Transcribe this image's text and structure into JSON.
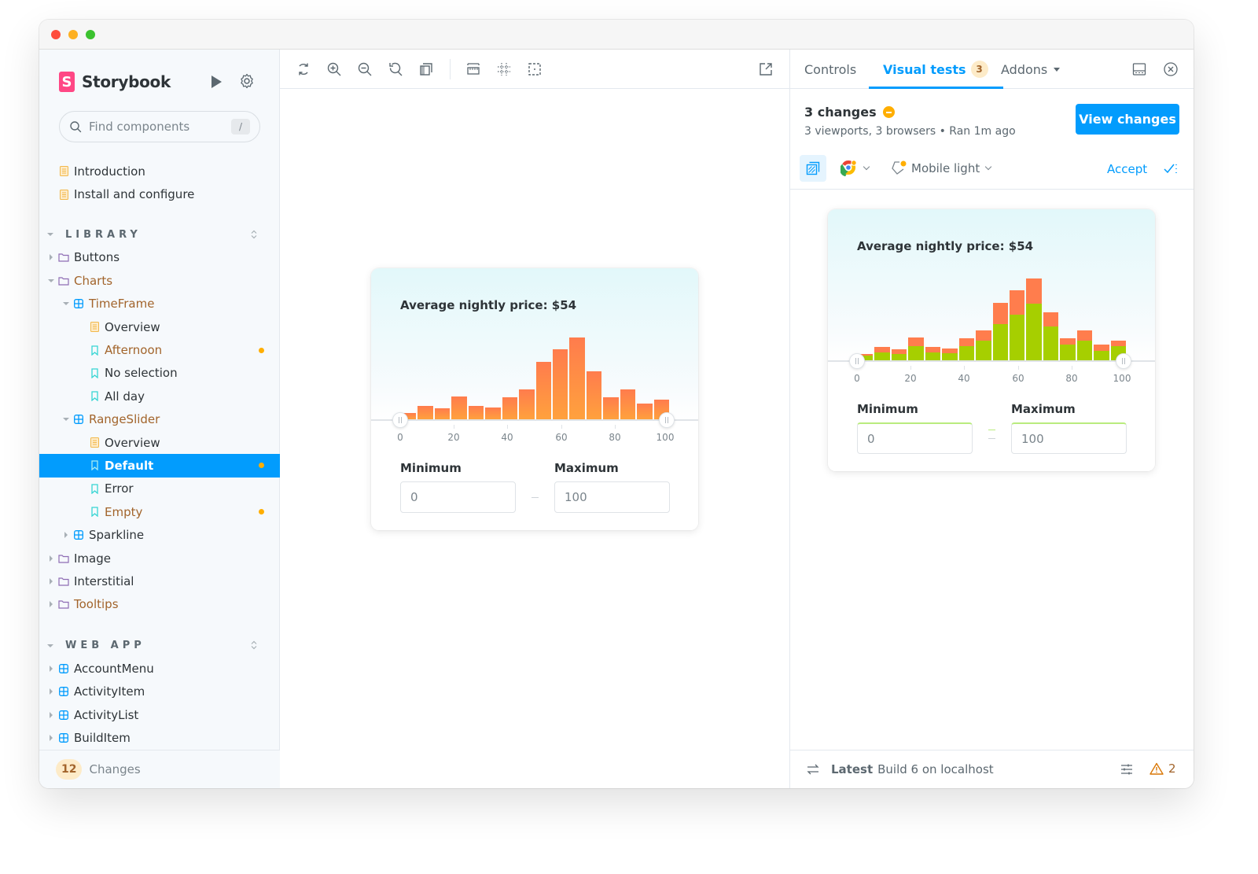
{
  "window": {
    "traffic_lights": [
      "close",
      "minimize",
      "maximize"
    ]
  },
  "sidebar": {
    "brand": "Storybook",
    "brand_glyph": "S",
    "search": {
      "placeholder": "Find components",
      "shortcut": "/"
    },
    "top_items": [
      {
        "label": "Introduction",
        "icon": "doc-icon"
      },
      {
        "label": "Install and configure",
        "icon": "doc-icon"
      }
    ],
    "sections": [
      {
        "label": "LIBRARY",
        "items": [
          {
            "label": "Buttons",
            "type": "folder",
            "expanded": false,
            "level": 0,
            "modified": false
          },
          {
            "label": "Charts",
            "type": "folder",
            "expanded": true,
            "level": 0,
            "modified": true
          },
          {
            "label": "TimeFrame",
            "type": "component",
            "expanded": true,
            "level": 1,
            "modified": true
          },
          {
            "label": "Overview",
            "type": "doc",
            "level": 2,
            "modified": false
          },
          {
            "label": "Afternoon",
            "type": "story",
            "level": 2,
            "modified": true,
            "dot": true
          },
          {
            "label": "No selection",
            "type": "story",
            "level": 2,
            "modified": false
          },
          {
            "label": "All day",
            "type": "story",
            "level": 2,
            "modified": false
          },
          {
            "label": "RangeSlider",
            "type": "component",
            "expanded": true,
            "level": 1,
            "modified": true
          },
          {
            "label": "Overview",
            "type": "doc",
            "level": 2,
            "modified": false
          },
          {
            "label": "Default",
            "type": "story",
            "level": 2,
            "selected": true,
            "dot": true
          },
          {
            "label": "Error",
            "type": "story",
            "level": 2,
            "modified": false
          },
          {
            "label": "Empty",
            "type": "story",
            "level": 2,
            "modified": true,
            "dot": true
          },
          {
            "label": "Sparkline",
            "type": "component",
            "expanded": false,
            "level": 1,
            "modified": false
          },
          {
            "label": "Image",
            "type": "folder",
            "expanded": false,
            "level": 0,
            "modified": false
          },
          {
            "label": "Interstitial",
            "type": "folder",
            "expanded": false,
            "level": 0,
            "modified": false
          },
          {
            "label": "Tooltips",
            "type": "folder",
            "expanded": false,
            "level": 0,
            "modified": true
          }
        ]
      },
      {
        "label": "WEB APP",
        "items": [
          {
            "label": "AccountMenu",
            "type": "component",
            "expanded": false,
            "level": 0
          },
          {
            "label": "ActivityItem",
            "type": "component",
            "expanded": false,
            "level": 0
          },
          {
            "label": "ActivityList",
            "type": "component",
            "expanded": false,
            "level": 0
          },
          {
            "label": "BuildItem",
            "type": "component",
            "expanded": false,
            "level": 0
          }
        ]
      }
    ],
    "footer": {
      "count": "12",
      "label": "Changes"
    }
  },
  "toolbar": {
    "tools": [
      "remount-icon",
      "zoom-in-icon",
      "zoom-out-icon",
      "zoom-reset-icon",
      "background-icon",
      "measure-icon",
      "grid-icon",
      "outline-icon"
    ],
    "open_new_tab": "open-in-new-tab-icon"
  },
  "story": {
    "title": "Average nightly price: $54",
    "min_label": "Minimum",
    "max_label": "Maximum",
    "min_value": "0",
    "max_value": "100",
    "ticks": [
      "0",
      "20",
      "40",
      "60",
      "80",
      "100"
    ]
  },
  "chart_data": {
    "type": "bar",
    "title": "Average nightly price: $54",
    "xlabel": "",
    "ylabel": "",
    "x_range": [
      0,
      100
    ],
    "tick_labels": [
      "0",
      "20",
      "40",
      "60",
      "80",
      "100"
    ],
    "categories": [
      "0-6",
      "6-12",
      "12-18",
      "18-24",
      "24-30",
      "30-36",
      "36-42",
      "42-48",
      "48-54",
      "54-60",
      "60-66",
      "66-72",
      "72-78",
      "78-84",
      "84-90",
      "90-96"
    ],
    "values": [
      8,
      17,
      14,
      29,
      17,
      15,
      28,
      38,
      73,
      89,
      104,
      61,
      28,
      38,
      20,
      25
    ],
    "baseline_values_green": [
      6,
      10,
      8,
      18,
      10,
      9,
      18,
      25,
      46,
      58,
      72,
      43,
      20,
      25,
      12,
      18
    ],
    "grid": false,
    "colors": {
      "bar": "#ff8a4c",
      "baseline_overlay": "#a6cf00",
      "diff_bar": "#ff7d4d"
    }
  },
  "panel": {
    "tabs": [
      {
        "label": "Controls",
        "active": false
      },
      {
        "label": "Visual tests",
        "active": true,
        "badge": "3"
      },
      {
        "label": "Addons",
        "active": false,
        "dropdown": true
      }
    ],
    "visual_tests": {
      "title": "3 changes",
      "subtitle": "3 viewports, 3 browsers • Ran 1m ago",
      "view_button": "View changes",
      "mode": "Mobile light",
      "accept": "Accept"
    },
    "footer": {
      "latest": "Latest",
      "build": "Build 6 on localhost",
      "warnings": "2"
    }
  },
  "colors": {
    "accent": "#029cfd",
    "brand": "#ff4785",
    "modified_text": "#a2642b",
    "dot": "#ffae00",
    "sidebar_bg": "#f6f9fc"
  }
}
